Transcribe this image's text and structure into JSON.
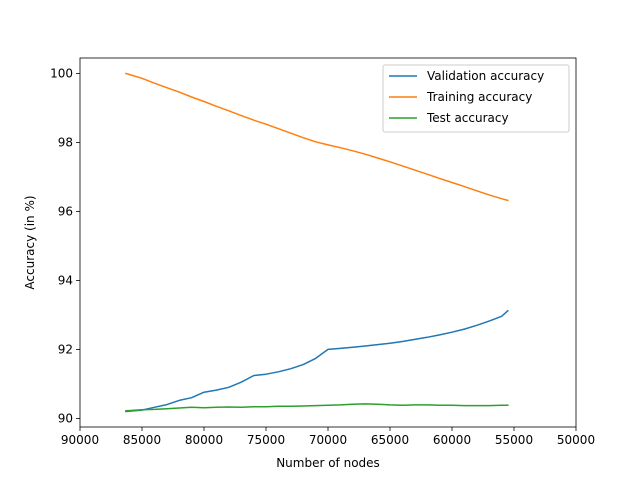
{
  "chart_data": {
    "type": "line",
    "title": "",
    "xlabel": "Number of nodes",
    "ylabel": "Accuracy (in %)",
    "xlim": [
      90000,
      50000
    ],
    "ylim": [
      89.75,
      100.45
    ],
    "x_inverted": true,
    "xticks": [
      90000,
      85000,
      80000,
      75000,
      70000,
      65000,
      60000,
      55000,
      50000
    ],
    "yticks": [
      90,
      92,
      94,
      96,
      98,
      100
    ],
    "grid": false,
    "legend_position": "upper right",
    "series": [
      {
        "name": "Validation accuracy",
        "color": "#1f77b4",
        "points": [
          [
            86300,
            90.2
          ],
          [
            85000,
            90.24
          ],
          [
            84000,
            90.32
          ],
          [
            83000,
            90.4
          ],
          [
            82000,
            90.52
          ],
          [
            81000,
            90.6
          ],
          [
            80000,
            90.76
          ],
          [
            79000,
            90.82
          ],
          [
            78000,
            90.9
          ],
          [
            77000,
            91.05
          ],
          [
            76000,
            91.24
          ],
          [
            75000,
            91.28
          ],
          [
            74000,
            91.35
          ],
          [
            73000,
            91.44
          ],
          [
            72000,
            91.56
          ],
          [
            71000,
            91.74
          ],
          [
            70000,
            92.0
          ],
          [
            69000,
            92.03
          ],
          [
            68000,
            92.06
          ],
          [
            67000,
            92.1
          ],
          [
            66000,
            92.14
          ],
          [
            65000,
            92.18
          ],
          [
            64000,
            92.23
          ],
          [
            63000,
            92.29
          ],
          [
            62000,
            92.35
          ],
          [
            61000,
            92.42
          ],
          [
            60000,
            92.5
          ],
          [
            59000,
            92.59
          ],
          [
            58000,
            92.7
          ],
          [
            57000,
            92.82
          ],
          [
            56000,
            92.96
          ],
          [
            55500,
            93.12
          ]
        ]
      },
      {
        "name": "Training accuracy",
        "color": "#ff7f0e",
        "points": [
          [
            86300,
            100.0
          ],
          [
            85000,
            99.86
          ],
          [
            84000,
            99.72
          ],
          [
            83000,
            99.59
          ],
          [
            82000,
            99.46
          ],
          [
            81000,
            99.32
          ],
          [
            80000,
            99.19
          ],
          [
            79000,
            99.05
          ],
          [
            78000,
            98.92
          ],
          [
            77000,
            98.78
          ],
          [
            76000,
            98.65
          ],
          [
            75000,
            98.53
          ],
          [
            74000,
            98.4
          ],
          [
            73000,
            98.27
          ],
          [
            72000,
            98.14
          ],
          [
            71000,
            98.02
          ],
          [
            70000,
            97.93
          ],
          [
            69000,
            97.85
          ],
          [
            68000,
            97.76
          ],
          [
            67000,
            97.66
          ],
          [
            66000,
            97.55
          ],
          [
            65000,
            97.44
          ],
          [
            64000,
            97.32
          ],
          [
            63000,
            97.2
          ],
          [
            62000,
            97.08
          ],
          [
            61000,
            96.96
          ],
          [
            60000,
            96.84
          ],
          [
            59000,
            96.72
          ],
          [
            58000,
            96.6
          ],
          [
            57000,
            96.48
          ],
          [
            56000,
            96.37
          ],
          [
            55500,
            96.32
          ]
        ]
      },
      {
        "name": "Test accuracy",
        "color": "#2ca02c",
        "points": [
          [
            86300,
            90.22
          ],
          [
            85000,
            90.25
          ],
          [
            84000,
            90.26
          ],
          [
            83000,
            90.28
          ],
          [
            82000,
            90.3
          ],
          [
            81000,
            90.32
          ],
          [
            80000,
            90.31
          ],
          [
            79000,
            90.32
          ],
          [
            78000,
            90.33
          ],
          [
            77000,
            90.32
          ],
          [
            76000,
            90.34
          ],
          [
            75000,
            90.34
          ],
          [
            74000,
            90.35
          ],
          [
            73000,
            90.35
          ],
          [
            72000,
            90.36
          ],
          [
            71000,
            90.37
          ],
          [
            70000,
            90.38
          ],
          [
            69000,
            90.39
          ],
          [
            68000,
            90.41
          ],
          [
            67000,
            90.42
          ],
          [
            66000,
            90.41
          ],
          [
            65000,
            90.39
          ],
          [
            64000,
            90.38
          ],
          [
            63000,
            90.39
          ],
          [
            62000,
            90.39
          ],
          [
            61000,
            90.38
          ],
          [
            60000,
            90.38
          ],
          [
            59000,
            90.37
          ],
          [
            58000,
            90.37
          ],
          [
            57000,
            90.37
          ],
          [
            56000,
            90.38
          ],
          [
            55500,
            90.38
          ]
        ]
      }
    ]
  }
}
